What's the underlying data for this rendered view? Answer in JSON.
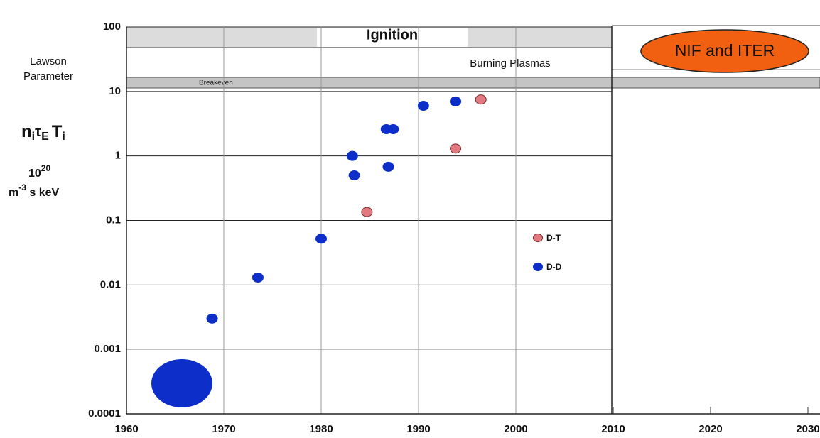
{
  "chart_data": {
    "type": "scatter",
    "y_label_lines": [
      "Lawson",
      "Parameter"
    ],
    "y_formula": [
      "n",
      "i",
      "τ",
      "E",
      "T",
      "i"
    ],
    "y_units": [
      "10",
      "20",
      "m",
      "-3",
      " s keV"
    ],
    "annotations": {
      "ignition": "Ignition",
      "burning": "Burning Plasmas",
      "breakeven": "Breakeven",
      "future": "NIF and ITER"
    },
    "xlim": [
      1960,
      2030
    ],
    "xticks": [
      1960,
      1970,
      1980,
      1990,
      2000,
      2010,
      2020,
      2030
    ],
    "ylim": [
      0.0001,
      100
    ],
    "yticks": [
      0.0001,
      0.001,
      0.01,
      0.1,
      1,
      10,
      100
    ],
    "log_y": true,
    "grid": true,
    "legend": "right",
    "series": [
      {
        "name": "D-T",
        "color": "#e07a80",
        "x": [
          1984.7,
          1993.8,
          1996.4
        ],
        "values": [
          0.135,
          1.3,
          7.5
        ]
      },
      {
        "name": "D-D",
        "color": "#0d2ec8",
        "x": [
          1968.8,
          1973.5,
          1980,
          1983.2,
          1983.4,
          1986.7,
          1987.4,
          1986.9,
          1990.5,
          1993.8
        ],
        "values": [
          0.003,
          0.013,
          0.052,
          1.0,
          0.5,
          2.6,
          2.6,
          0.68,
          6,
          7
        ]
      }
    ]
  }
}
